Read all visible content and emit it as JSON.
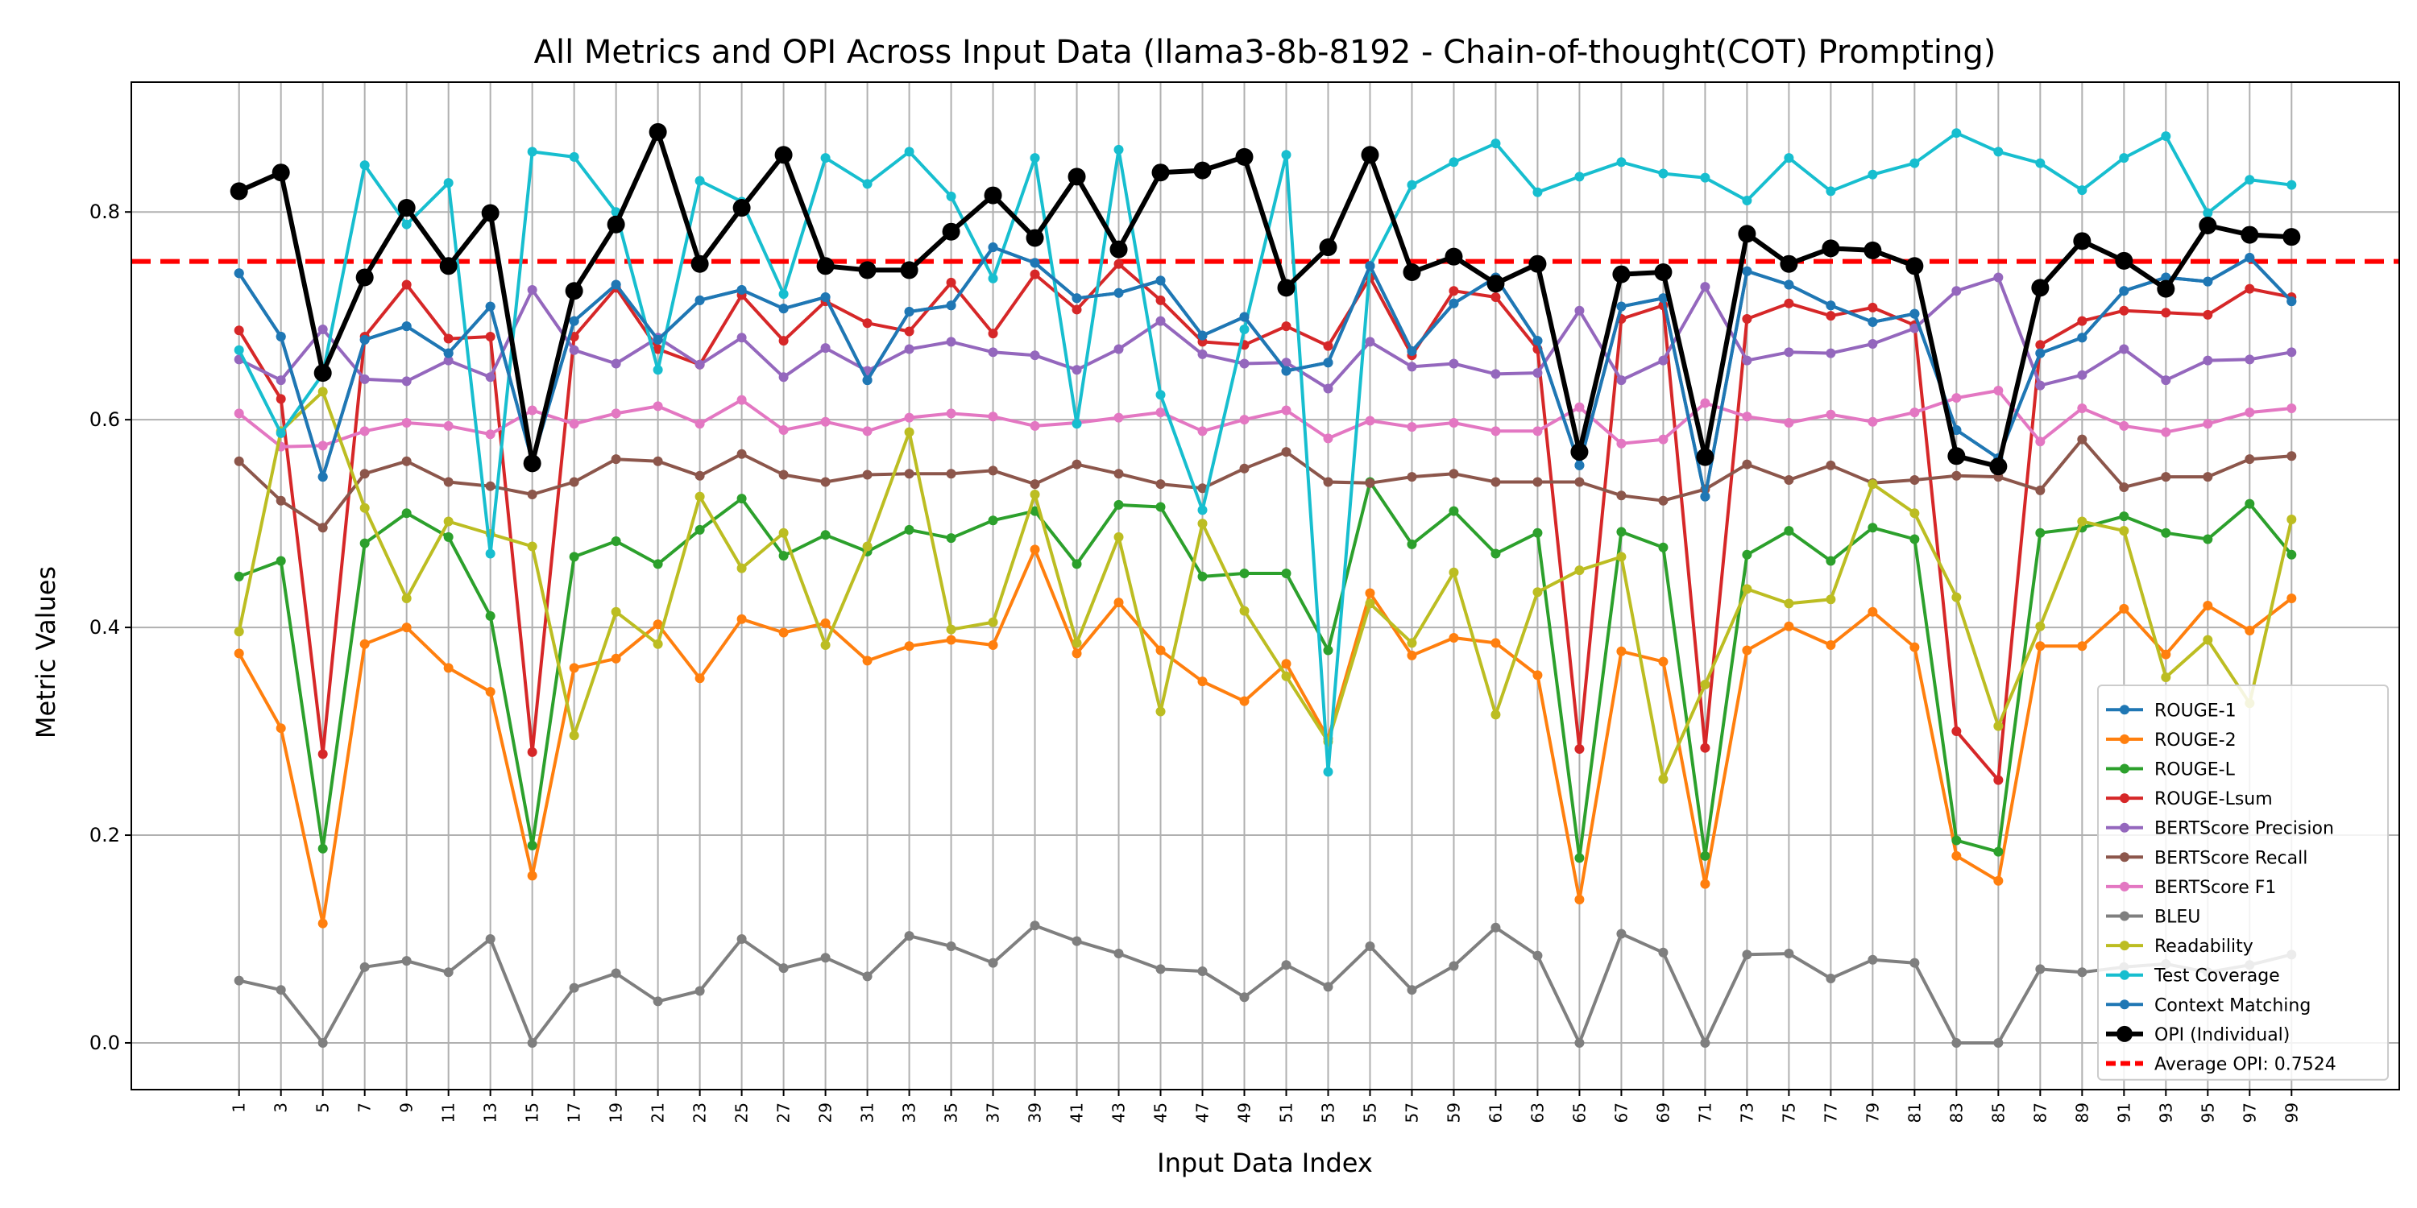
{
  "chart_data": {
    "type": "line",
    "title": "All Metrics and OPI Across Input Data (llama3-8b-8192 - Chain-of-thought(COT) Prompting)",
    "xlabel": "Input Data Index",
    "ylabel": "Metric Values",
    "x": [
      1,
      3,
      5,
      7,
      9,
      11,
      13,
      15,
      17,
      19,
      21,
      23,
      25,
      27,
      29,
      31,
      33,
      35,
      37,
      39,
      41,
      43,
      45,
      47,
      49,
      51,
      53,
      55,
      57,
      59,
      61,
      63,
      65,
      67,
      69,
      71,
      73,
      75,
      77,
      79,
      81,
      83,
      85,
      87,
      89,
      91,
      93,
      95,
      97,
      99
    ],
    "ylim": [
      -0.045,
      0.925
    ],
    "yticks": [
      "0.0",
      "0.2",
      "0.4",
      "0.6",
      "0.8"
    ],
    "grid": true,
    "legend_position": "lower-right",
    "series": [
      {
        "name": "ROUGE-1",
        "color": "#1f77b4",
        "values": [
          0.741,
          0.68,
          0.545,
          0.677,
          0.69,
          0.664,
          0.709,
          0.56,
          0.695,
          0.73,
          0.677,
          0.715,
          0.725,
          0.707,
          0.718,
          0.638,
          0.704,
          0.71,
          0.766,
          0.751,
          0.717,
          0.722,
          0.734,
          0.681,
          0.699,
          0.647,
          0.655,
          0.748,
          0.666,
          0.712,
          0.737,
          0.676,
          0.556,
          0.709,
          0.717,
          0.526,
          0.743,
          0.73,
          0.71,
          0.694,
          0.702,
          0.59,
          0.563,
          0.664,
          0.679,
          0.724,
          0.737,
          0.733,
          0.756,
          0.714
        ]
      },
      {
        "name": "ROUGE-2",
        "color": "#ff7f0e",
        "values": [
          0.375,
          0.303,
          0.115,
          0.384,
          0.4,
          0.361,
          0.338,
          0.161,
          0.361,
          0.37,
          0.403,
          0.351,
          0.408,
          0.395,
          0.404,
          0.368,
          0.382,
          0.388,
          0.383,
          0.475,
          0.375,
          0.424,
          0.378,
          0.348,
          0.329,
          0.365,
          0.293,
          0.433,
          0.373,
          0.39,
          0.385,
          0.354,
          0.138,
          0.377,
          0.367,
          0.153,
          0.378,
          0.401,
          0.383,
          0.415,
          0.381,
          0.18,
          0.156,
          0.382,
          0.382,
          0.418,
          0.374,
          0.421,
          0.397,
          0.428
        ]
      },
      {
        "name": "ROUGE-L",
        "color": "#2ca02c",
        "values": [
          0.449,
          0.464,
          0.187,
          0.481,
          0.51,
          0.487,
          0.411,
          0.19,
          0.468,
          0.483,
          0.461,
          0.494,
          0.524,
          0.469,
          0.489,
          0.473,
          0.494,
          0.486,
          0.503,
          0.512,
          0.461,
          0.518,
          0.516,
          0.449,
          0.452,
          0.452,
          0.378,
          0.54,
          0.48,
          0.512,
          0.471,
          0.491,
          0.178,
          0.492,
          0.477,
          0.18,
          0.47,
          0.493,
          0.464,
          0.496,
          0.485,
          0.195,
          0.184,
          0.491,
          0.496,
          0.507,
          0.491,
          0.485,
          0.519,
          0.47
        ]
      },
      {
        "name": "ROUGE-Lsum",
        "color": "#d62728",
        "values": [
          0.686,
          0.62,
          0.278,
          0.68,
          0.73,
          0.678,
          0.68,
          0.28,
          0.68,
          0.727,
          0.668,
          0.653,
          0.72,
          0.676,
          0.714,
          0.693,
          0.685,
          0.732,
          0.683,
          0.74,
          0.706,
          0.75,
          0.715,
          0.675,
          0.672,
          0.69,
          0.671,
          0.737,
          0.662,
          0.724,
          0.718,
          0.668,
          0.283,
          0.697,
          0.71,
          0.284,
          0.697,
          0.712,
          0.7,
          0.708,
          0.691,
          0.3,
          0.253,
          0.672,
          0.695,
          0.705,
          0.703,
          0.701,
          0.726,
          0.718
        ]
      },
      {
        "name": "BERTScore Precision",
        "color": "#9467bd",
        "values": [
          0.658,
          0.638,
          0.687,
          0.639,
          0.637,
          0.657,
          0.641,
          0.725,
          0.667,
          0.654,
          0.679,
          0.653,
          0.679,
          0.641,
          0.669,
          0.647,
          0.668,
          0.675,
          0.665,
          0.662,
          0.648,
          0.668,
          0.695,
          0.663,
          0.654,
          0.655,
          0.63,
          0.675,
          0.651,
          0.654,
          0.644,
          0.645,
          0.705,
          0.638,
          0.657,
          0.728,
          0.657,
          0.665,
          0.664,
          0.673,
          0.688,
          0.724,
          0.737,
          0.633,
          0.643,
          0.668,
          0.638,
          0.657,
          0.658,
          0.665
        ]
      },
      {
        "name": "BERTScore Recall",
        "color": "#8c564b",
        "values": [
          0.56,
          0.522,
          0.496,
          0.548,
          0.56,
          0.54,
          0.536,
          0.528,
          0.54,
          0.562,
          0.56,
          0.546,
          0.567,
          0.547,
          0.54,
          0.547,
          0.548,
          0.548,
          0.551,
          0.538,
          0.557,
          0.548,
          0.538,
          0.534,
          0.553,
          0.569,
          0.54,
          0.539,
          0.545,
          0.548,
          0.54,
          0.54,
          0.54,
          0.527,
          0.522,
          0.533,
          0.557,
          0.542,
          0.556,
          0.539,
          0.542,
          0.546,
          0.545,
          0.532,
          0.581,
          0.535,
          0.545,
          0.545,
          0.562,
          0.565
        ]
      },
      {
        "name": "BERTScore F1",
        "color": "#e377c2",
        "values": [
          0.606,
          0.574,
          0.575,
          0.589,
          0.597,
          0.594,
          0.586,
          0.609,
          0.596,
          0.606,
          0.613,
          0.596,
          0.619,
          0.59,
          0.598,
          0.589,
          0.602,
          0.606,
          0.603,
          0.594,
          0.597,
          0.602,
          0.607,
          0.589,
          0.6,
          0.609,
          0.582,
          0.599,
          0.593,
          0.597,
          0.589,
          0.589,
          0.612,
          0.577,
          0.581,
          0.616,
          0.603,
          0.597,
          0.605,
          0.598,
          0.607,
          0.621,
          0.628,
          0.579,
          0.611,
          0.594,
          0.588,
          0.596,
          0.607,
          0.611
        ]
      },
      {
        "name": "BLEU",
        "color": "#7f7f7f",
        "values": [
          0.06,
          0.051,
          0.0,
          0.073,
          0.079,
          0.068,
          0.1,
          0.0,
          0.053,
          0.067,
          0.04,
          0.05,
          0.1,
          0.072,
          0.082,
          0.064,
          0.103,
          0.093,
          0.077,
          0.113,
          0.098,
          0.086,
          0.071,
          0.069,
          0.044,
          0.075,
          0.054,
          0.093,
          0.051,
          0.074,
          0.111,
          0.084,
          0.0,
          0.105,
          0.087,
          0.0,
          0.085,
          0.086,
          0.062,
          0.08,
          0.077,
          0.0,
          0.0,
          0.071,
          0.068,
          0.073,
          0.076,
          0.068,
          0.075,
          0.085
        ]
      },
      {
        "name": "Readability",
        "color": "#bcbd22",
        "values": [
          0.396,
          0.589,
          0.627,
          0.515,
          0.428,
          0.502,
          0.49,
          0.478,
          0.296,
          0.415,
          0.384,
          0.526,
          0.457,
          0.491,
          0.383,
          0.478,
          0.588,
          0.398,
          0.405,
          0.528,
          0.385,
          0.487,
          0.319,
          0.5,
          0.416,
          0.353,
          0.29,
          0.423,
          0.385,
          0.453,
          0.316,
          0.434,
          0.455,
          0.468,
          0.254,
          0.345,
          0.437,
          0.423,
          0.427,
          0.538,
          0.51,
          0.429,
          0.305,
          0.401,
          0.502,
          0.493,
          0.352,
          0.388,
          0.327,
          0.504
        ]
      },
      {
        "name": "Test Coverage",
        "color": "#17becf",
        "values": [
          0.667,
          0.587,
          0.644,
          0.845,
          0.788,
          0.828,
          0.471,
          0.858,
          0.853,
          0.8,
          0.648,
          0.83,
          0.81,
          0.721,
          0.852,
          0.827,
          0.858,
          0.815,
          0.736,
          0.852,
          0.596,
          0.86,
          0.624,
          0.513,
          0.687,
          0.855,
          0.261,
          0.748,
          0.826,
          0.848,
          0.866,
          0.819,
          0.834,
          0.848,
          0.837,
          0.833,
          0.811,
          0.852,
          0.82,
          0.836,
          0.847,
          0.876,
          0.858,
          0.847,
          0.821,
          0.852,
          0.873,
          0.799,
          0.831,
          0.826
        ]
      },
      {
        "name": "Context Matching",
        "color": "#1f77b4",
        "values": [
          0.741,
          0.68,
          0.545,
          0.677,
          0.69,
          0.664,
          0.709,
          0.56,
          0.695,
          0.73,
          0.677,
          0.715,
          0.725,
          0.707,
          0.718,
          0.638,
          0.704,
          0.71,
          0.766,
          0.751,
          0.717,
          0.722,
          0.734,
          0.681,
          0.699,
          0.647,
          0.655,
          0.748,
          0.666,
          0.712,
          0.737,
          0.676,
          0.556,
          0.709,
          0.717,
          0.526,
          0.743,
          0.73,
          0.71,
          0.694,
          0.702,
          0.59,
          0.563,
          0.664,
          0.679,
          0.724,
          0.737,
          0.733,
          0.756,
          0.714
        ]
      },
      {
        "name": "OPI (Individual)",
        "color": "#000000",
        "values": [
          0.82,
          0.838,
          0.645,
          0.737,
          0.804,
          0.748,
          0.799,
          0.558,
          0.724,
          0.788,
          0.877,
          0.75,
          0.804,
          0.855,
          0.748,
          0.744,
          0.744,
          0.781,
          0.816,
          0.775,
          0.834,
          0.764,
          0.838,
          0.84,
          0.853,
          0.727,
          0.766,
          0.855,
          0.742,
          0.757,
          0.731,
          0.75,
          0.569,
          0.74,
          0.742,
          0.564,
          0.779,
          0.75,
          0.765,
          0.763,
          0.748,
          0.565,
          0.555,
          0.727,
          0.772,
          0.753,
          0.726,
          0.787,
          0.778,
          0.776
        ]
      }
    ],
    "reference_line": {
      "name": "Average OPI: 0.7524",
      "value": 0.7524,
      "color": "#ff0000"
    }
  }
}
